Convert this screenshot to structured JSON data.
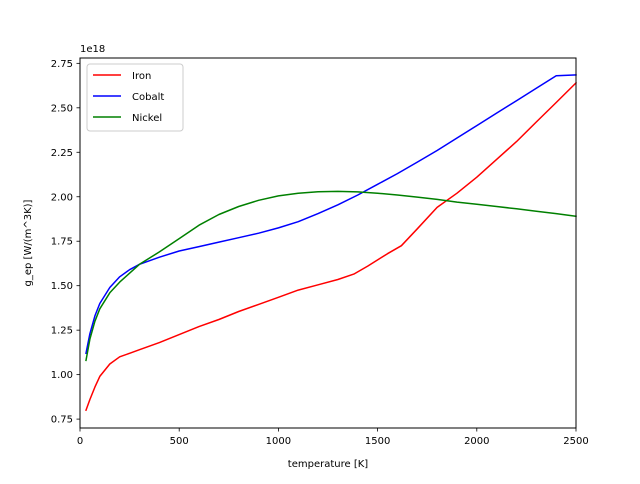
{
  "chart_data": {
    "type": "line",
    "title": "",
    "xlabel": "temperature [K]",
    "ylabel": "g_ep [W/(m^3K)]",
    "offset_text": "1e18",
    "xlim": [
      0,
      2500
    ],
    "ylim": [
      0.7,
      2.78
    ],
    "xticks": [
      0,
      500,
      1000,
      1500,
      2000,
      2500
    ],
    "xtick_labels": [
      "0",
      "500",
      "1000",
      "1500",
      "2000",
      "2500"
    ],
    "yticks": [
      0.75,
      1.0,
      1.25,
      1.5,
      1.75,
      2.0,
      2.25,
      2.5,
      2.75
    ],
    "ytick_labels": [
      "0.75",
      "1.00",
      "1.25",
      "1.50",
      "1.75",
      "2.00",
      "2.25",
      "2.50",
      "2.75"
    ],
    "grid": false,
    "legend_position": "top-left",
    "series": [
      {
        "name": "Iron",
        "color": "#ff0000",
        "x": [
          30,
          50,
          75,
          100,
          150,
          200,
          250,
          300,
          400,
          500,
          600,
          700,
          800,
          900,
          1000,
          1100,
          1200,
          1300,
          1380,
          1450,
          1550,
          1620,
          1700,
          1800,
          1900,
          2000,
          2100,
          2200,
          2300,
          2400,
          2500
        ],
        "y": [
          0.8,
          0.86,
          0.93,
          0.99,
          1.06,
          1.1,
          1.12,
          1.14,
          1.18,
          1.225,
          1.27,
          1.31,
          1.355,
          1.395,
          1.435,
          1.475,
          1.505,
          1.535,
          1.565,
          1.61,
          1.68,
          1.725,
          1.82,
          1.94,
          2.02,
          2.11,
          2.21,
          2.31,
          2.42,
          2.53,
          2.64
        ]
      },
      {
        "name": "Cobalt",
        "color": "#0000ff",
        "x": [
          30,
          50,
          75,
          100,
          150,
          200,
          250,
          300,
          400,
          500,
          600,
          700,
          800,
          900,
          1000,
          1100,
          1200,
          1300,
          1400,
          1500,
          1600,
          1700,
          1800,
          1900,
          2000,
          2100,
          2200,
          2300,
          2400,
          2500
        ],
        "y": [
          1.12,
          1.23,
          1.33,
          1.4,
          1.49,
          1.55,
          1.59,
          1.62,
          1.66,
          1.695,
          1.72,
          1.745,
          1.77,
          1.795,
          1.825,
          1.86,
          1.905,
          1.955,
          2.01,
          2.07,
          2.13,
          2.195,
          2.26,
          2.33,
          2.4,
          2.47,
          2.54,
          2.61,
          2.68,
          2.685
        ]
      },
      {
        "name": "Nickel",
        "color": "#008000",
        "x": [
          30,
          50,
          75,
          100,
          150,
          200,
          250,
          300,
          400,
          500,
          600,
          700,
          800,
          900,
          1000,
          1100,
          1200,
          1300,
          1400,
          1500,
          1600,
          1700,
          1800,
          1900,
          2000,
          2100,
          2200,
          2300,
          2400,
          2500
        ],
        "y": [
          1.08,
          1.2,
          1.3,
          1.37,
          1.46,
          1.52,
          1.57,
          1.62,
          1.69,
          1.765,
          1.84,
          1.9,
          1.945,
          1.98,
          2.005,
          2.02,
          2.028,
          2.03,
          2.027,
          2.02,
          2.01,
          1.998,
          1.985,
          1.97,
          1.958,
          1.945,
          1.932,
          1.918,
          1.905,
          1.89
        ]
      }
    ]
  }
}
